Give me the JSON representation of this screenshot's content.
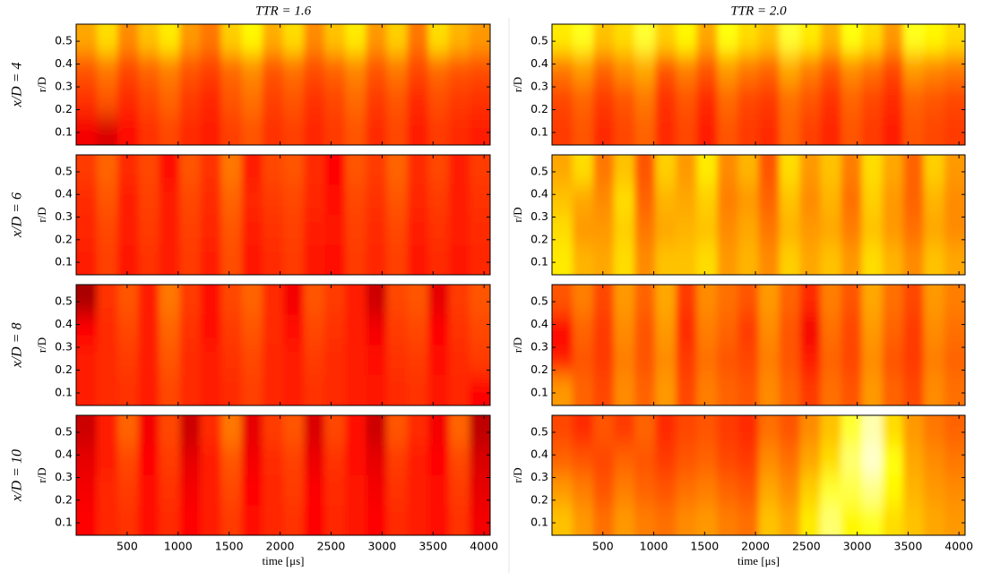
{
  "chart_data": {
    "type": "heatmap",
    "colormap": "hot",
    "column_titles": [
      "TTR = 1.6",
      "TTR = 2.0"
    ],
    "row_labels": [
      "x/D = 4",
      "x/D = 6",
      "x/D = 8",
      "x/D = 10"
    ],
    "xlabel": "time [μs]",
    "ylabel": "r/D",
    "xlim": [
      0,
      4060
    ],
    "xticks": [
      500,
      1000,
      1500,
      2000,
      2500,
      3000,
      3500,
      4000
    ],
    "ylim": [
      0.045,
      0.575
    ],
    "yticks": [
      0.1,
      0.2,
      0.3,
      0.4,
      0.5
    ],
    "panels": [
      {
        "z": [
          [
            0.62,
            0.7,
            0.58,
            0.66,
            0.72,
            0.6,
            0.55,
            0.68,
            0.74,
            0.63,
            0.7,
            0.58,
            0.66,
            0.72,
            0.6,
            0.68,
            0.55,
            0.7,
            0.64,
            0.6
          ],
          [
            0.5,
            0.55,
            0.48,
            0.52,
            0.56,
            0.5,
            0.47,
            0.53,
            0.58,
            0.5,
            0.54,
            0.49,
            0.52,
            0.57,
            0.5,
            0.55,
            0.48,
            0.53,
            0.5,
            0.49
          ],
          [
            0.45,
            0.5,
            0.44,
            0.48,
            0.52,
            0.46,
            0.43,
            0.5,
            0.54,
            0.47,
            0.5,
            0.45,
            0.48,
            0.53,
            0.46,
            0.5,
            0.44,
            0.49,
            0.46,
            0.45
          ],
          [
            0.36,
            0.32,
            0.4,
            0.45,
            0.48,
            0.44,
            0.42,
            0.47,
            0.5,
            0.45,
            0.47,
            0.43,
            0.46,
            0.5,
            0.44,
            0.48,
            0.42,
            0.46,
            0.44,
            0.42
          ]
        ]
      },
      {
        "z": [
          [
            0.72,
            0.78,
            0.66,
            0.7,
            0.8,
            0.68,
            0.74,
            0.62,
            0.76,
            0.7,
            0.66,
            0.8,
            0.72,
            0.64,
            0.76,
            0.7,
            0.6,
            0.78,
            0.74,
            0.7
          ],
          [
            0.55,
            0.6,
            0.52,
            0.58,
            0.62,
            0.5,
            0.56,
            0.5,
            0.6,
            0.55,
            0.52,
            0.62,
            0.56,
            0.5,
            0.58,
            0.54,
            0.48,
            0.6,
            0.57,
            0.55
          ],
          [
            0.48,
            0.52,
            0.46,
            0.5,
            0.55,
            0.45,
            0.5,
            0.44,
            0.53,
            0.48,
            0.46,
            0.54,
            0.5,
            0.45,
            0.52,
            0.48,
            0.44,
            0.52,
            0.5,
            0.48
          ],
          [
            0.46,
            0.5,
            0.44,
            0.48,
            0.52,
            0.44,
            0.48,
            0.42,
            0.5,
            0.46,
            0.44,
            0.52,
            0.47,
            0.43,
            0.5,
            0.46,
            0.42,
            0.5,
            0.48,
            0.46
          ]
        ]
      },
      {
        "z": [
          [
            0.46,
            0.52,
            0.44,
            0.48,
            0.4,
            0.5,
            0.45,
            0.55,
            0.42,
            0.48,
            0.5,
            0.44,
            0.38,
            0.5,
            0.46,
            0.52,
            0.44,
            0.48,
            0.42,
            0.46
          ],
          [
            0.44,
            0.5,
            0.42,
            0.47,
            0.42,
            0.48,
            0.44,
            0.52,
            0.43,
            0.46,
            0.48,
            0.43,
            0.4,
            0.48,
            0.45,
            0.5,
            0.43,
            0.46,
            0.42,
            0.45
          ],
          [
            0.43,
            0.48,
            0.42,
            0.46,
            0.42,
            0.47,
            0.43,
            0.5,
            0.42,
            0.45,
            0.47,
            0.42,
            0.41,
            0.47,
            0.44,
            0.48,
            0.42,
            0.45,
            0.42,
            0.44
          ],
          [
            0.42,
            0.47,
            0.41,
            0.45,
            0.42,
            0.46,
            0.42,
            0.49,
            0.41,
            0.44,
            0.46,
            0.41,
            0.4,
            0.46,
            0.43,
            0.47,
            0.41,
            0.44,
            0.41,
            0.43
          ]
        ]
      },
      {
        "z": [
          [
            0.62,
            0.7,
            0.55,
            0.66,
            0.5,
            0.68,
            0.6,
            0.72,
            0.58,
            0.64,
            0.5,
            0.7,
            0.6,
            0.66,
            0.56,
            0.7,
            0.62,
            0.52,
            0.68,
            0.6
          ],
          [
            0.66,
            0.62,
            0.58,
            0.7,
            0.52,
            0.64,
            0.62,
            0.68,
            0.56,
            0.6,
            0.52,
            0.66,
            0.58,
            0.64,
            0.54,
            0.68,
            0.6,
            0.52,
            0.64,
            0.58
          ],
          [
            0.7,
            0.6,
            0.6,
            0.68,
            0.55,
            0.62,
            0.64,
            0.66,
            0.58,
            0.62,
            0.55,
            0.64,
            0.6,
            0.62,
            0.56,
            0.66,
            0.6,
            0.54,
            0.62,
            0.58
          ],
          [
            0.72,
            0.64,
            0.62,
            0.7,
            0.58,
            0.66,
            0.66,
            0.7,
            0.6,
            0.64,
            0.58,
            0.68,
            0.62,
            0.66,
            0.6,
            0.7,
            0.64,
            0.58,
            0.66,
            0.62
          ]
        ]
      },
      {
        "z": [
          [
            0.25,
            0.45,
            0.5,
            0.42,
            0.55,
            0.46,
            0.4,
            0.48,
            0.52,
            0.44,
            0.36,
            0.5,
            0.46,
            0.42,
            0.3,
            0.48,
            0.5,
            0.34,
            0.46,
            0.5
          ],
          [
            0.38,
            0.44,
            0.48,
            0.42,
            0.52,
            0.45,
            0.4,
            0.46,
            0.5,
            0.44,
            0.4,
            0.48,
            0.45,
            0.42,
            0.36,
            0.46,
            0.48,
            0.38,
            0.45,
            0.48
          ],
          [
            0.42,
            0.44,
            0.46,
            0.42,
            0.5,
            0.44,
            0.42,
            0.45,
            0.48,
            0.43,
            0.42,
            0.46,
            0.44,
            0.42,
            0.4,
            0.45,
            0.46,
            0.4,
            0.44,
            0.46
          ],
          [
            0.42,
            0.44,
            0.45,
            0.42,
            0.48,
            0.44,
            0.42,
            0.44,
            0.47,
            0.43,
            0.42,
            0.45,
            0.44,
            0.42,
            0.41,
            0.44,
            0.45,
            0.41,
            0.43,
            0.38
          ]
        ]
      },
      {
        "z": [
          [
            0.5,
            0.56,
            0.48,
            0.6,
            0.52,
            0.62,
            0.46,
            0.58,
            0.54,
            0.5,
            0.6,
            0.52,
            0.44,
            0.56,
            0.5,
            0.62,
            0.54,
            0.48,
            0.6,
            0.56
          ],
          [
            0.38,
            0.52,
            0.46,
            0.58,
            0.5,
            0.6,
            0.44,
            0.56,
            0.52,
            0.46,
            0.58,
            0.5,
            0.36,
            0.54,
            0.48,
            0.6,
            0.52,
            0.46,
            0.58,
            0.54
          ],
          [
            0.42,
            0.5,
            0.46,
            0.56,
            0.5,
            0.58,
            0.46,
            0.54,
            0.5,
            0.48,
            0.56,
            0.5,
            0.42,
            0.52,
            0.48,
            0.58,
            0.5,
            0.46,
            0.56,
            0.52
          ],
          [
            0.6,
            0.52,
            0.48,
            0.58,
            0.52,
            0.6,
            0.48,
            0.56,
            0.52,
            0.5,
            0.58,
            0.52,
            0.46,
            0.54,
            0.5,
            0.6,
            0.52,
            0.48,
            0.58,
            0.54
          ]
        ]
      },
      {
        "z": [
          [
            0.3,
            0.42,
            0.52,
            0.36,
            0.48,
            0.3,
            0.44,
            0.55,
            0.34,
            0.46,
            0.5,
            0.32,
            0.48,
            0.4,
            0.3,
            0.5,
            0.44,
            0.36,
            0.52,
            0.28
          ],
          [
            0.34,
            0.42,
            0.48,
            0.38,
            0.46,
            0.34,
            0.42,
            0.5,
            0.36,
            0.44,
            0.47,
            0.35,
            0.45,
            0.4,
            0.34,
            0.46,
            0.42,
            0.38,
            0.48,
            0.32
          ],
          [
            0.36,
            0.43,
            0.46,
            0.4,
            0.45,
            0.36,
            0.42,
            0.48,
            0.38,
            0.43,
            0.46,
            0.37,
            0.44,
            0.41,
            0.36,
            0.45,
            0.42,
            0.39,
            0.46,
            0.34
          ],
          [
            0.38,
            0.43,
            0.45,
            0.4,
            0.44,
            0.38,
            0.42,
            0.46,
            0.39,
            0.43,
            0.45,
            0.38,
            0.43,
            0.41,
            0.38,
            0.44,
            0.42,
            0.4,
            0.45,
            0.36
          ]
        ]
      },
      {
        "z": [
          [
            0.48,
            0.44,
            0.5,
            0.46,
            0.52,
            0.44,
            0.48,
            0.5,
            0.46,
            0.44,
            0.54,
            0.5,
            0.58,
            0.66,
            0.8,
            0.92,
            0.7,
            0.6,
            0.55,
            0.52
          ],
          [
            0.52,
            0.5,
            0.48,
            0.52,
            0.5,
            0.46,
            0.5,
            0.52,
            0.48,
            0.46,
            0.58,
            0.54,
            0.62,
            0.7,
            0.86,
            0.95,
            0.76,
            0.62,
            0.58,
            0.55
          ],
          [
            0.6,
            0.56,
            0.5,
            0.56,
            0.52,
            0.5,
            0.54,
            0.56,
            0.52,
            0.5,
            0.62,
            0.58,
            0.68,
            0.8,
            0.82,
            0.88,
            0.74,
            0.64,
            0.6,
            0.58
          ],
          [
            0.66,
            0.6,
            0.54,
            0.6,
            0.56,
            0.54,
            0.58,
            0.6,
            0.56,
            0.54,
            0.66,
            0.62,
            0.72,
            0.86,
            0.74,
            0.78,
            0.7,
            0.66,
            0.62,
            0.6
          ]
        ]
      }
    ]
  }
}
